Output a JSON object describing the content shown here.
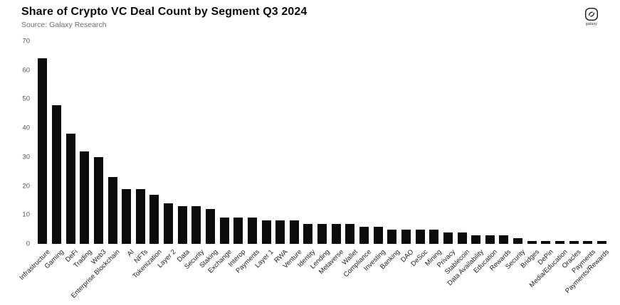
{
  "header": {
    "title": "Share of Crypto VC Deal Count by Segment Q3 2024",
    "subtitle": "Source: Galaxy Research",
    "logo_text": "galaxy"
  },
  "chart_data": {
    "type": "bar",
    "title": "Share of Crypto VC Deal Count by Segment Q3 2024",
    "subtitle": "Source: Galaxy Research",
    "xlabel": "",
    "ylabel": "",
    "ylim": [
      0,
      70
    ],
    "ytick_step": 10,
    "grid": false,
    "legend": "none",
    "bar_color": "#0b0b0b",
    "categories": [
      "Infrastructure",
      "Gaming",
      "DeFi",
      "Trading",
      "Web3",
      "Enterprise Blockchain",
      "AI",
      "NFTs",
      "Tokenization",
      "Layer 2",
      "Data",
      "Security",
      "Staking",
      "Exchange",
      "Interop",
      "Payments",
      "Layer 1",
      "RWA",
      "Venture",
      "Identity",
      "Lending",
      "Metaverse",
      "Wallet",
      "Compliance",
      "Investing",
      "Banking",
      "DAO",
      "DeSoc",
      "Mining",
      "Privacy",
      "Stablecoin",
      "Data Availability",
      "Education",
      "Rewards",
      "Security",
      "Bridges",
      "DePin",
      "Media/Education",
      "Oracles",
      "Payments",
      "Payments/Rewards"
    ],
    "values": [
      64,
      48,
      38,
      32,
      30,
      23,
      19,
      19,
      17,
      14,
      13,
      13,
      12,
      9,
      9,
      9,
      8,
      8,
      8,
      7,
      7,
      7,
      7,
      6,
      6,
      5,
      5,
      5,
      5,
      4,
      4,
      3,
      3,
      3,
      2,
      1,
      1,
      1,
      1,
      1,
      1
    ]
  }
}
